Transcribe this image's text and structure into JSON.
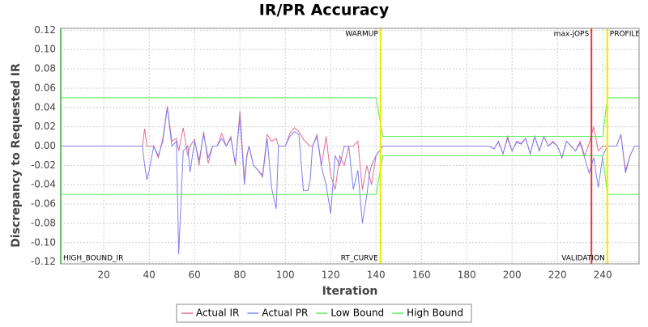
{
  "chart_data": {
    "type": "line",
    "title": "IR/PR Accuracy",
    "x_label": "Iteration",
    "y_label": "Discrepancy to Requested IR",
    "xlim": [
      1,
      256
    ],
    "ylim": [
      -0.122,
      0.122
    ],
    "xticks": [
      20,
      40,
      60,
      80,
      100,
      120,
      140,
      160,
      180,
      200,
      220,
      240
    ],
    "yticks": [
      {
        "value": 0.12,
        "label": "0.12"
      },
      {
        "value": 0.1,
        "label": "0.10"
      },
      {
        "value": 0.08,
        "label": "0.08"
      },
      {
        "value": 0.06,
        "label": "0.06"
      },
      {
        "value": 0.04,
        "label": "0.04"
      },
      {
        "value": 0.02,
        "label": "0.02"
      },
      {
        "value": 0,
        "label": "0.00"
      },
      {
        "value": -0.02,
        "label": "-0.02"
      },
      {
        "value": -0.04,
        "label": "-0.04"
      },
      {
        "value": -0.06,
        "label": "-0.06"
      },
      {
        "value": -0.08,
        "label": "-0.08"
      },
      {
        "value": -0.1,
        "label": "-0.10"
      },
      {
        "value": -0.12,
        "label": "-0.12"
      }
    ],
    "grid": true,
    "x": [
      1,
      37,
      38,
      39,
      40,
      42,
      44,
      46,
      48,
      50,
      52,
      53,
      55,
      57,
      58,
      60,
      62,
      64,
      66,
      68,
      70,
      72,
      74,
      76,
      78,
      80,
      82,
      83,
      84,
      86,
      88,
      90,
      92,
      94,
      96,
      97,
      98,
      100,
      102,
      104,
      106,
      108,
      110,
      111,
      112,
      114,
      116,
      118,
      120,
      122,
      124,
      126,
      128,
      130,
      132,
      134,
      136,
      137,
      138,
      140,
      143,
      190,
      192,
      194,
      196,
      198,
      200,
      202,
      204,
      206,
      208,
      210,
      212,
      214,
      216,
      218,
      220,
      222,
      224,
      226,
      228,
      230,
      232,
      234,
      236,
      238,
      240,
      242,
      244,
      246,
      248,
      250,
      252,
      254,
      256
    ],
    "series": [
      {
        "name": "Actual IR",
        "color": "#e07090",
        "values": [
          0,
          0,
          0.018,
          0,
          0,
          0,
          -0.012,
          0.008,
          0.041,
          0.005,
          0.008,
          -0.005,
          0.019,
          -0.01,
          0,
          0.007,
          -0.02,
          0.015,
          -0.018,
          0,
          0,
          0.013,
          0,
          0.01,
          -0.02,
          0.036,
          -0.035,
          -0.01,
          0,
          -0.02,
          -0.025,
          -0.03,
          0.012,
          0.005,
          0.008,
          0,
          0,
          0,
          0.013,
          0.019,
          0.015,
          0.007,
          0.002,
          0,
          0,
          0.012,
          -0.02,
          0.01,
          -0.03,
          -0.045,
          -0.01,
          -0.02,
          0,
          0,
          0.005,
          -0.045,
          -0.02,
          -0.03,
          -0.04,
          -0.01,
          0,
          0,
          -0.003,
          0.005,
          -0.008,
          0.01,
          -0.005,
          0.005,
          0.003,
          0.008,
          -0.008,
          0.01,
          -0.005,
          0.01,
          0,
          0.005,
          0,
          -0.012,
          0.005,
          0,
          -0.005,
          0.005,
          -0.01,
          0.003,
          0.02,
          -0.005,
          0,
          0,
          0,
          0,
          0.012,
          -0.025,
          -0.01,
          0,
          0
        ]
      },
      {
        "name": "Actual PR",
        "color": "#7f7ff0",
        "values": [
          0,
          0,
          -0.02,
          -0.035,
          -0.025,
          0,
          -0.01,
          0.005,
          0.04,
          0,
          0.005,
          -0.112,
          -0.005,
          0,
          -0.027,
          0.005,
          -0.015,
          0.012,
          -0.012,
          0,
          0,
          0.008,
          0,
          0.008,
          -0.018,
          0.03,
          -0.04,
          -0.012,
          0,
          -0.02,
          -0.025,
          -0.032,
          0.008,
          -0.044,
          -0.065,
          0,
          0,
          0,
          0.01,
          0.015,
          0.012,
          -0.046,
          -0.046,
          -0.035,
          0,
          0.01,
          -0.022,
          -0.04,
          -0.07,
          -0.01,
          -0.02,
          0,
          0,
          -0.045,
          -0.025,
          -0.08,
          -0.05,
          -0.03,
          -0.02,
          -0.01,
          0,
          0,
          -0.003,
          0.004,
          -0.008,
          0.008,
          -0.005,
          0.004,
          0.002,
          0.008,
          -0.008,
          0.01,
          -0.005,
          0.01,
          0,
          0.004,
          0,
          -0.012,
          0.005,
          0,
          -0.005,
          0.003,
          -0.012,
          -0.028,
          -0.012,
          -0.043,
          -0.01,
          0,
          0,
          0,
          0.012,
          -0.028,
          -0.01,
          0,
          0
        ]
      },
      {
        "name": "Low Bound",
        "color": "#55ee55",
        "values": [
          -0.05,
          -0.05,
          -0.05,
          -0.05,
          -0.05,
          -0.05,
          -0.05,
          -0.05,
          -0.05,
          -0.05,
          -0.05,
          -0.05,
          -0.05,
          -0.05,
          -0.05,
          -0.05,
          -0.05,
          -0.05,
          -0.05,
          -0.05,
          -0.05,
          -0.05,
          -0.05,
          -0.05,
          -0.05,
          -0.05,
          -0.05,
          -0.05,
          -0.05,
          -0.05,
          -0.05,
          -0.05,
          -0.05,
          -0.05,
          -0.05,
          -0.05,
          -0.05,
          -0.05,
          -0.05,
          -0.05,
          -0.05,
          -0.05,
          -0.05,
          -0.05,
          -0.05,
          -0.05,
          -0.05,
          -0.05,
          -0.05,
          -0.05,
          -0.05,
          -0.05,
          -0.05,
          -0.05,
          -0.05,
          -0.05,
          -0.05,
          -0.05,
          -0.05,
          -0.05,
          -0.01,
          -0.01,
          -0.01,
          -0.01,
          -0.01,
          -0.01,
          -0.01,
          -0.01,
          -0.01,
          -0.01,
          -0.01,
          -0.01,
          -0.01,
          -0.01,
          -0.01,
          -0.01,
          -0.01,
          -0.01,
          -0.01,
          -0.01,
          -0.01,
          -0.01,
          -0.01,
          -0.01,
          -0.01,
          -0.01,
          -0.01,
          -0.05,
          -0.05,
          -0.05,
          -0.05,
          -0.05,
          -0.05,
          -0.05,
          -0.05
        ]
      },
      {
        "name": "High Bound",
        "color": "#55ee55",
        "values": [
          0.05,
          0.05,
          0.05,
          0.05,
          0.05,
          0.05,
          0.05,
          0.05,
          0.05,
          0.05,
          0.05,
          0.05,
          0.05,
          0.05,
          0.05,
          0.05,
          0.05,
          0.05,
          0.05,
          0.05,
          0.05,
          0.05,
          0.05,
          0.05,
          0.05,
          0.05,
          0.05,
          0.05,
          0.05,
          0.05,
          0.05,
          0.05,
          0.05,
          0.05,
          0.05,
          0.05,
          0.05,
          0.05,
          0.05,
          0.05,
          0.05,
          0.05,
          0.05,
          0.05,
          0.05,
          0.05,
          0.05,
          0.05,
          0.05,
          0.05,
          0.05,
          0.05,
          0.05,
          0.05,
          0.05,
          0.05,
          0.05,
          0.05,
          0.05,
          0.05,
          0.01,
          0.01,
          0.01,
          0.01,
          0.01,
          0.01,
          0.01,
          0.01,
          0.01,
          0.01,
          0.01,
          0.01,
          0.01,
          0.01,
          0.01,
          0.01,
          0.01,
          0.01,
          0.01,
          0.01,
          0.01,
          0.01,
          0.01,
          0.01,
          0.01,
          0.01,
          0.01,
          0.05,
          0.05,
          0.05,
          0.05,
          0.05,
          0.05,
          0.05,
          0.05
        ]
      }
    ],
    "markers": [
      {
        "x": 1,
        "label": "HIGH_BOUND_IR",
        "color": "#55ee55",
        "position": "bottom-right"
      },
      {
        "x": 142,
        "label": "WARMUP",
        "color": "#eeee00",
        "position": "top-left"
      },
      {
        "x": 142,
        "label": "RT_CURVE",
        "color": "#eeee00",
        "position": "bottom-left"
      },
      {
        "x": 235,
        "label": "max-jOPS",
        "color": "#ee3333",
        "position": "top-left"
      },
      {
        "x": 242,
        "label": "VALIDATION",
        "color": "#eeee00",
        "position": "bottom-left"
      },
      {
        "x": 242,
        "label": "PROFILE",
        "color": "#eeee00",
        "position": "top-right"
      }
    ]
  }
}
